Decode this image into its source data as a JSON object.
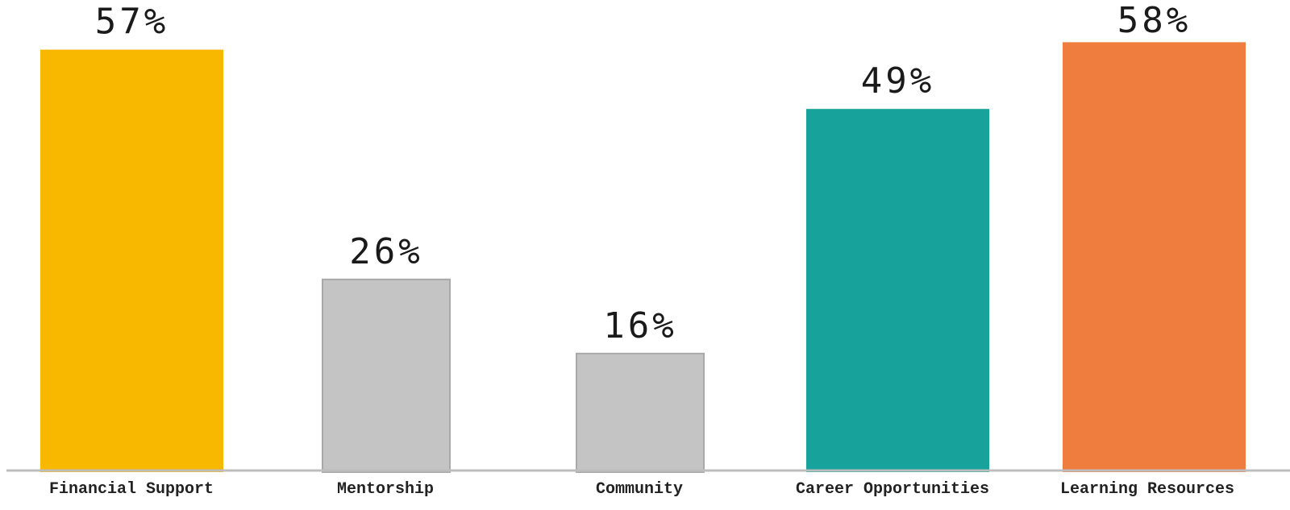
{
  "chart_data": {
    "type": "bar",
    "title": "",
    "xlabel": "",
    "ylabel": "",
    "categories": [
      "Financial Support",
      "Mentorship",
      "Community",
      "Career Opportunities",
      "Learning Resources"
    ],
    "values": [
      57,
      26,
      16,
      49,
      58
    ],
    "value_labels": [
      "57%",
      "26%",
      "16%",
      "49%",
      "58%"
    ],
    "colors": [
      "#F9B800",
      "#C4C4C4",
      "#C4C4C4",
      "#17A29B",
      "#EE7D3E"
    ],
    "bar_border_colors": [
      "none",
      "#A9A9A9",
      "#A9A9A9",
      "none",
      "none"
    ],
    "ylim": [
      0,
      65
    ],
    "grid": false,
    "legend": "none"
  }
}
